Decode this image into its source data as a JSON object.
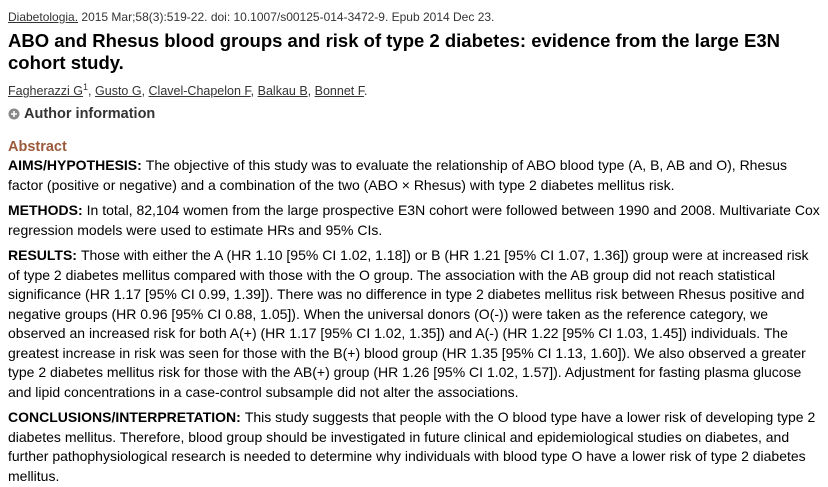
{
  "citation": {
    "journal": "Diabetologia.",
    "details": "2015 Mar;58(3):519-22. doi: 10.1007/s00125-014-3472-9. Epub 2014 Dec 23."
  },
  "title": "ABO and Rhesus blood groups and risk of type 2 diabetes: evidence from the large E3N cohort study.",
  "authors": {
    "list": [
      {
        "name": "Fagherazzi G",
        "affiliation": "1"
      },
      {
        "name": "Gusto G"
      },
      {
        "name": "Clavel-Chapelon F"
      },
      {
        "name": "Balkau B"
      },
      {
        "name": "Bonnet F"
      }
    ],
    "separator": ",",
    "end": "."
  },
  "author_information": "Author information",
  "abstract": {
    "heading": "Abstract",
    "sections": [
      {
        "label": "AIMS/HYPOTHESIS:",
        "text": "The objective of this study was to evaluate the relationship of ABO blood type (A, B, AB and O), Rhesus factor (positive or negative) and a combination of the two (ABO × Rhesus) with type 2 diabetes mellitus risk."
      },
      {
        "label": "METHODS:",
        "text": "In total, 82,104 women from the large prospective E3N cohort were followed between 1990 and 2008. Multivariate Cox regression models were used to estimate HRs and 95% CIs."
      },
      {
        "label": "RESULTS:",
        "text": "Those with either the A (HR 1.10 [95% CI 1.02, 1.18]) or B (HR 1.21 [95% CI 1.07, 1.36]) group were at increased risk of type 2 diabetes mellitus compared with those with the O group. The association with the AB group did not reach statistical significance (HR 1.17 [95% CI 0.99, 1.39]). There was no difference in type 2 diabetes mellitus risk between Rhesus positive and negative groups (HR 0.96 [95% CI 0.88, 1.05]). When the universal donors (O(-)) were taken as the reference category, we observed an increased risk for both A(+) (HR 1.17 [95% CI 1.02, 1.35]) and A(-) (HR 1.22 [95% CI 1.03, 1.45]) individuals. The greatest increase in risk was seen for those with the B(+) blood group (HR 1.35 [95% CI 1.13, 1.60]). We also observed a greater type 2 diabetes mellitus risk for those with the AB(+) group (HR 1.26 [95% CI 1.02, 1.57]). Adjustment for fasting plasma glucose and lipid concentrations in a case-control subsample did not alter the associations."
      },
      {
        "label": "CONCLUSIONS/INTERPRETATION:",
        "text": "This study suggests that people with the O blood type have a lower risk of developing type 2 diabetes mellitus. Therefore, blood group should be investigated in future clinical and epidemiological studies on diabetes, and further pathophysiological research is needed to determine why individuals with blood type O have a lower risk of type 2 diabetes mellitus."
      }
    ]
  }
}
